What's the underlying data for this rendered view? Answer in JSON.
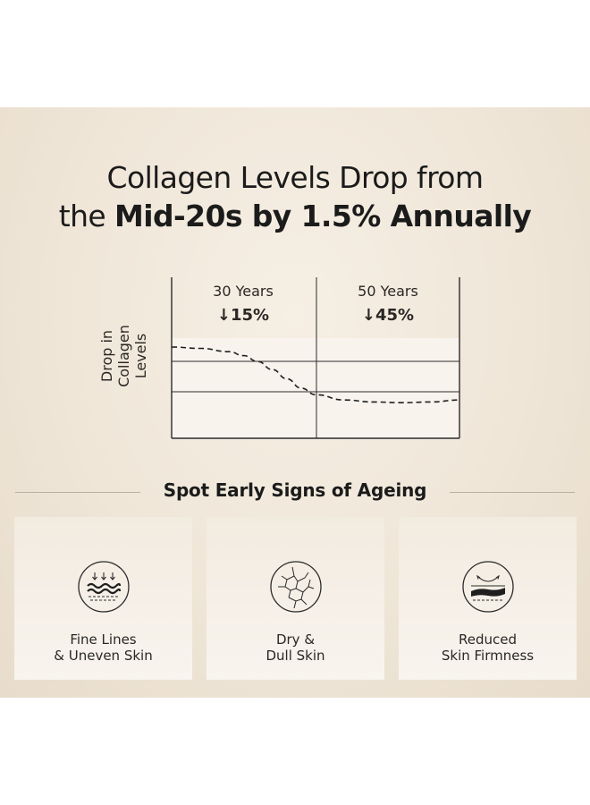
{
  "headline": {
    "line1": "Collagen Levels Drop from",
    "line2_prefix": "the ",
    "line2_bold": "Mid-20s by 1.5% Annually"
  },
  "chart_data": {
    "type": "line",
    "title": "Collagen Levels Drop from the Mid-20s by 1.5% Annually",
    "ylabel_line1": "Drop in",
    "ylabel_line2": "Collagen Levels",
    "series_style": "dashed",
    "periods": [
      {
        "label": "30 Years",
        "change": "↓15%"
      },
      {
        "label": "50 Years",
        "change": "↓45%"
      }
    ],
    "x": [
      0,
      0.1,
      0.2,
      0.25,
      0.3,
      0.35,
      0.4,
      0.45,
      0.5,
      0.6,
      0.7,
      0.8,
      0.9,
      1.0
    ],
    "y": [
      1.0,
      0.98,
      0.93,
      0.87,
      0.78,
      0.66,
      0.52,
      0.38,
      0.28,
      0.2,
      0.17,
      0.16,
      0.17,
      0.2
    ]
  },
  "section": {
    "title": "Spot Early Signs of Ageing"
  },
  "cards": [
    {
      "icon": "fine-lines-icon",
      "line1": "Fine Lines",
      "line2": "& Uneven Skin"
    },
    {
      "icon": "cracked-skin-icon",
      "line1": "Dry &",
      "line2": "Dull Skin"
    },
    {
      "icon": "skin-firmness-icon",
      "line1": "Reduced",
      "line2": "Skin Firmness"
    }
  ],
  "colors": {
    "panel": "#efe6d8",
    "text": "#1b1b1b",
    "line": "#2b2b2b",
    "plot_band": "#f7f2ea"
  }
}
